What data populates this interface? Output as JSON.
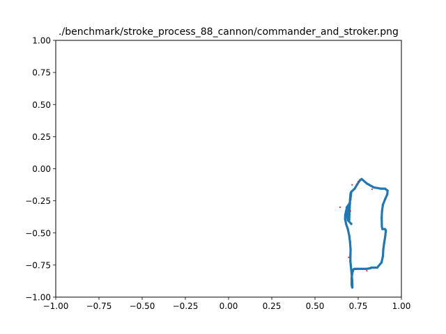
{
  "chart_data": {
    "type": "scatter",
    "title": "./benchmark/stroke_process_88_cannon/commander_and_stroker.png",
    "xlabel": "",
    "ylabel": "",
    "xlim": [
      -1.0,
      1.0
    ],
    "ylim": [
      -1.0,
      1.0
    ],
    "xticks": [
      -1.0,
      -0.75,
      -0.5,
      -0.25,
      0.0,
      0.25,
      0.5,
      0.75,
      1.0
    ],
    "xtick_labels": [
      "−1.00",
      "−0.75",
      "−0.50",
      "−0.25",
      "0.00",
      "0.25",
      "0.50",
      "0.75",
      "1.00"
    ],
    "yticks": [
      1.0,
      0.75,
      0.5,
      0.25,
      0.0,
      -0.25,
      -0.5,
      -0.75,
      -1.0
    ],
    "ytick_labels": [
      "1.00",
      "0.75",
      "0.50",
      "0.25",
      "0.00",
      "−0.25",
      "−0.50",
      "−0.75",
      "−1.00"
    ],
    "grid": false,
    "legend": "none",
    "series": [
      {
        "color": "#1f77b4",
        "style": "dense-points",
        "x": [
          0.71,
          0.69,
          0.685,
          0.682,
          0.684,
          0.7,
          0.705,
          0.71,
          0.73,
          0.745,
          0.76,
          0.77,
          0.8,
          0.84,
          0.88,
          0.905,
          0.92,
          0.918,
          0.905,
          0.893,
          0.888,
          0.886,
          0.887,
          0.89,
          0.905,
          0.91,
          0.906,
          0.9,
          0.895,
          0.893,
          0.885,
          0.86,
          0.825,
          0.82,
          0.795,
          0.77,
          0.75,
          0.728,
          0.722,
          0.718,
          0.715,
          0.712,
          0.712,
          0.714,
          0.716,
          0.716,
          0.715,
          0.713,
          0.71,
          0.707,
          0.705,
          0.705,
          0.706,
          0.703,
          0.698,
          0.69,
          0.68,
          0.674,
          0.675,
          0.68,
          0.686,
          0.692,
          0.695,
          0.697,
          0.698,
          0.7,
          0.702,
          0.703,
          0.705,
          0.706,
          0.71
        ],
        "y": [
          -0.43,
          -0.4,
          -0.36,
          -0.33,
          -0.3,
          -0.27,
          -0.24,
          -0.18,
          -0.155,
          -0.12,
          -0.09,
          -0.08,
          -0.115,
          -0.145,
          -0.155,
          -0.155,
          -0.17,
          -0.2,
          -0.24,
          -0.28,
          -0.33,
          -0.38,
          -0.45,
          -0.47,
          -0.47,
          -0.48,
          -0.53,
          -0.58,
          -0.63,
          -0.68,
          -0.73,
          -0.77,
          -0.77,
          -0.775,
          -0.78,
          -0.78,
          -0.78,
          -0.78,
          -0.785,
          -0.8,
          -0.82,
          -0.85,
          -0.9,
          -0.92,
          -0.925,
          -0.9,
          -0.87,
          -0.83,
          -0.79,
          -0.75,
          -0.72,
          -0.68,
          -0.63,
          -0.57,
          -0.52,
          -0.47,
          -0.43,
          -0.39,
          -0.36,
          -0.33,
          -0.3,
          -0.29,
          -0.33,
          -0.37,
          -0.4,
          -0.32,
          -0.27,
          -0.24,
          -0.21,
          -0.19,
          -0.18
        ]
      },
      {
        "color": "#d62728",
        "style": "markers",
        "x": [
          0.645,
          0.695,
          0.705,
          0.83,
          0.8,
          0.75,
          0.715
        ],
        "y": [
          -0.3,
          -0.69,
          -0.33,
          -0.16,
          -0.795,
          -0.1,
          -0.125
        ]
      }
    ]
  }
}
